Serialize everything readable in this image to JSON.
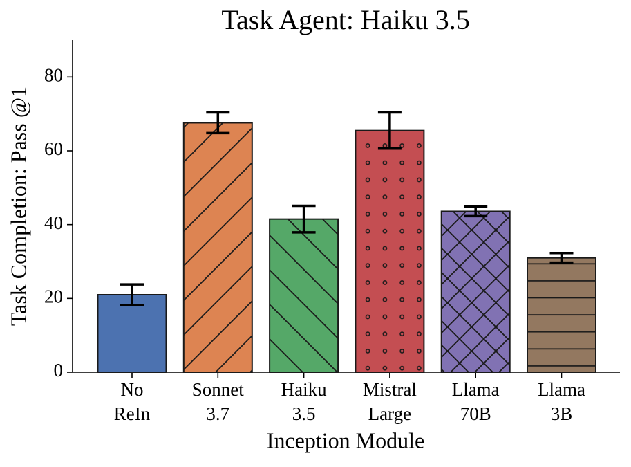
{
  "chart_data": {
    "type": "bar",
    "title": "Task Agent: Haiku 3.5",
    "xlabel": "Inception Module",
    "ylabel": "Task Completion: Pass @1",
    "categories": [
      [
        "No",
        "ReIn"
      ],
      [
        "Sonnet",
        "3.7"
      ],
      [
        "Haiku",
        "3.5"
      ],
      [
        "Mistral",
        "Large"
      ],
      [
        "Llama",
        "70B"
      ],
      [
        "Llama",
        "3B"
      ]
    ],
    "values": [
      21.0,
      67.6,
      41.5,
      65.5,
      43.6,
      31.0
    ],
    "errors": [
      2.8,
      2.8,
      3.6,
      4.9,
      1.3,
      1.3
    ],
    "colors": [
      "#4c72b0",
      "#dd8452",
      "#55a868",
      "#c44e52",
      "#8172b3",
      "#937860"
    ],
    "hatches": [
      null,
      "/",
      "\\",
      "o",
      "x",
      "-"
    ],
    "ylim": [
      0,
      90
    ],
    "yticks": [
      0,
      20,
      40,
      60,
      80
    ],
    "grid": false
  }
}
